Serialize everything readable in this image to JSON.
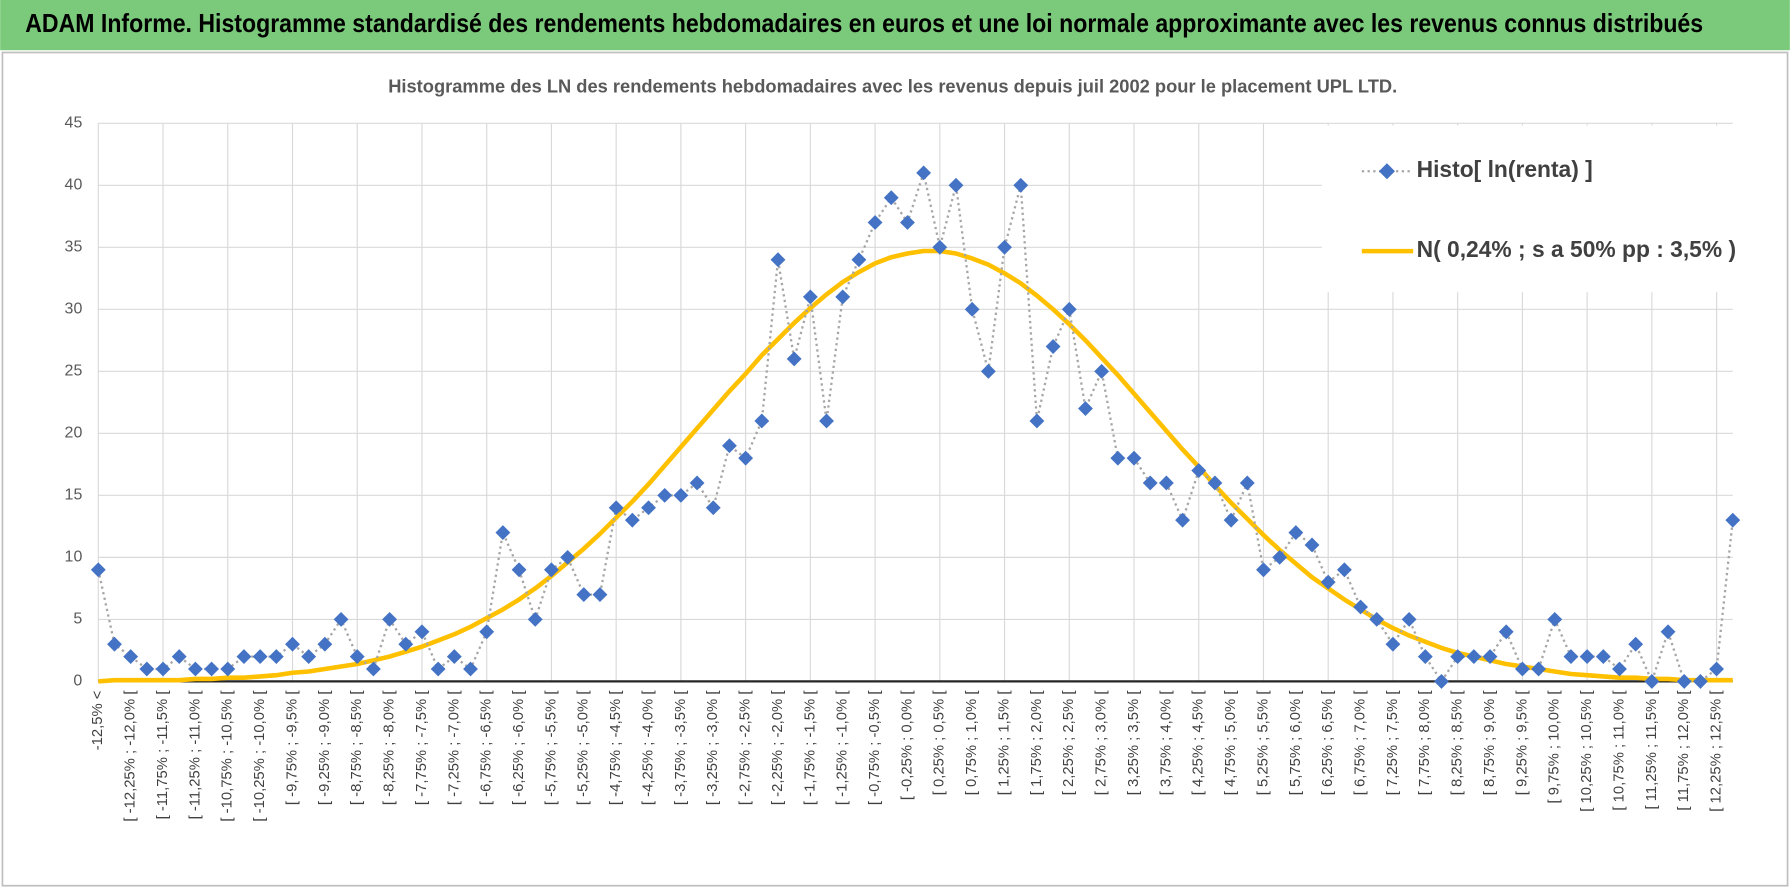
{
  "header": {
    "title": "ADAM Informe. Histogramme standardisé des rendements hebdomadaires en euros et une loi normale approximante avec les revenus connus distribués"
  },
  "chart_data": {
    "type": "line",
    "title": "Histogramme des LN des rendements hebdomadaires avec les revenus depuis juil 2002 pour le placement UPL LTD.",
    "categories": [
      "-12,5% <",
      null,
      "[ -12,25% ; -12,0% [",
      null,
      "[ -11,75% ; -11,5% [",
      null,
      "[ -11,25% ; -11,0% [",
      null,
      "[ -10,75% ; -10,5% [",
      null,
      "[ -10,25% ; -10,0% [",
      null,
      "[ -9,75% ; -9,5% [",
      null,
      "[ -9,25% ; -9,0% [",
      null,
      "[ -8,75% ; -8,5% [",
      null,
      "[ -8,25% ; -8,0% [",
      null,
      "[ -7,75% ; -7,5% [",
      null,
      "[ -7,25% ; -7,0% [",
      null,
      "[ -6,75% ; -6,5% [",
      null,
      "[ -6,25% ; -6,0% [",
      null,
      "[ -5,75% ; -5,5% [",
      null,
      "[ -5,25% ; -5,0% [",
      null,
      "[ -4,75% ; -4,5% [",
      null,
      "[ -4,25% ; -4,0% [",
      null,
      "[ -3,75% ; -3,5% [",
      null,
      "[ -3,25% ; -3,0% [",
      null,
      "[ -2,75% ; -2,5% [",
      null,
      "[ -2,25% ; -2,0% [",
      null,
      "[ -1,75% ; -1,5% [",
      null,
      "[ -1,25% ; -1,0% [",
      null,
      "[ -0,75% ; -0,5% [",
      null,
      "[ -0,25% ; 0,0% [",
      null,
      "[ 0,25% ; 0,5% [",
      null,
      "[ 0,75% ; 1,0% [",
      null,
      "[ 1,25% ; 1,5% [",
      null,
      "[ 1,75% ; 2,0% [",
      null,
      "[ 2,25% ; 2,5% [",
      null,
      "[ 2,75% ; 3,0% [",
      null,
      "[ 3,25% ; 3,5% [",
      null,
      "[ 3,75% ; 4,0% [",
      null,
      "[ 4,25% ; 4,5% [",
      null,
      "[ 4,75% ; 5,0% [",
      null,
      "[ 5,25% ; 5,5% [",
      null,
      "[ 5,75% ; 6,0% [",
      null,
      "[ 6,25% ; 6,5% [",
      null,
      "[ 6,75% ; 7,0% [",
      null,
      "[ 7,25% ; 7,5% [",
      null,
      "[ 7,75% ; 8,0% [",
      null,
      "[ 8,25% ; 8,5% [",
      null,
      "[ 8,75% ; 9,0% [",
      null,
      "[ 9,25% ; 9,5% [",
      null,
      "[ 9,75% ; 10,0% [",
      null,
      "[ 10,25% ; 10,5% [",
      null,
      "[ 10,75% ; 11,0% [",
      null,
      "[ 11,25% ; 11,5% [",
      null,
      "[ 11,75% ; 12,0% [",
      null,
      "[ 12,25% ; 12,5% [",
      null
    ],
    "series": [
      {
        "name": "Histo[ ln(renta) ]",
        "color": "#4472c4",
        "line_color": "#a6a6a6",
        "line_style": "dotted",
        "marker": "diamond",
        "values": [
          9,
          3,
          2,
          1,
          1,
          2,
          1,
          1,
          1,
          2,
          2,
          2,
          3,
          2,
          3,
          5,
          2,
          1,
          5,
          3,
          4,
          1,
          2,
          1,
          4,
          12,
          9,
          5,
          9,
          10,
          7,
          7,
          14,
          13,
          14,
          15,
          15,
          16,
          14,
          19,
          18,
          21,
          34,
          26,
          31,
          21,
          31,
          34,
          37,
          39,
          37,
          41,
          35,
          40,
          30,
          25,
          35,
          40,
          21,
          27,
          30,
          22,
          25,
          18,
          18,
          16,
          16,
          13,
          17,
          16,
          13,
          16,
          9,
          10,
          12,
          11,
          8,
          9,
          6,
          5,
          3,
          5,
          2,
          0,
          2,
          2,
          2,
          4,
          1,
          1,
          5,
          2,
          2,
          2,
          1,
          3,
          0,
          4,
          0,
          0,
          1,
          13
        ]
      },
      {
        "name": "N( 0,24% ; s a 50% pp : 3,5% )",
        "color": "#ffc000",
        "line_style": "solid",
        "marker": "none",
        "values": [
          0.0,
          0.1,
          0.1,
          0.1,
          0.1,
          0.1,
          0.2,
          0.2,
          0.3,
          0.3,
          0.4,
          0.5,
          0.7,
          0.8,
          1.0,
          1.2,
          1.4,
          1.7,
          2.0,
          2.4,
          2.8,
          3.3,
          3.8,
          4.4,
          5.1,
          5.8,
          6.6,
          7.5,
          8.5,
          9.6,
          10.7,
          11.9,
          13.2,
          14.5,
          15.9,
          17.4,
          18.9,
          20.4,
          21.9,
          23.4,
          24.8,
          26.3,
          27.6,
          28.9,
          30.1,
          31.2,
          32.2,
          33.0,
          33.7,
          34.2,
          34.5,
          34.7,
          34.7,
          34.5,
          34.1,
          33.6,
          32.9,
          32.1,
          31.1,
          30.0,
          28.8,
          27.5,
          26.1,
          24.7,
          23.2,
          21.7,
          20.2,
          18.7,
          17.3,
          15.8,
          14.4,
          13.1,
          11.8,
          10.6,
          9.5,
          8.4,
          7.5,
          6.6,
          5.8,
          5.0,
          4.3,
          3.7,
          3.2,
          2.7,
          2.3,
          2.0,
          1.7,
          1.4,
          1.2,
          1.0,
          0.8,
          0.6,
          0.5,
          0.4,
          0.3,
          0.3,
          0.2,
          0.2,
          0.1,
          0.1,
          0.1,
          0.1
        ]
      }
    ],
    "ylim": [
      0,
      45
    ],
    "yticks": [
      0,
      5,
      10,
      15,
      20,
      25,
      30,
      35,
      40,
      45
    ],
    "grid": true,
    "legend": "top-right"
  }
}
